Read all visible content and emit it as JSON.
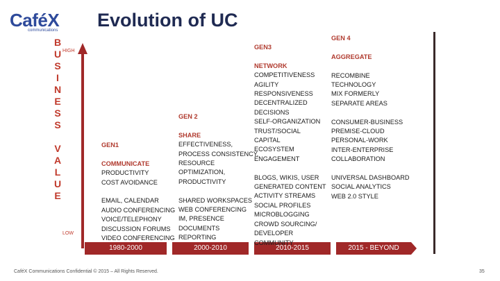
{
  "logo": {
    "text": "Café",
    "x": "X",
    "sub": "communications"
  },
  "title": "Evolution of UC",
  "yaxis": {
    "letters": [
      "B",
      "U",
      "S",
      "I",
      "N",
      "E",
      "S",
      "S",
      "",
      "V",
      "A",
      "L",
      "U",
      "E"
    ],
    "high": "HIGH",
    "low": "LOW"
  },
  "timeline": [
    "1980-2000",
    "2000-2010",
    "2010-2015",
    "2015 - BEYOND"
  ],
  "columns": [
    {
      "gen": "GEN1",
      "head": "COMMUNICATE",
      "lines": [
        "PRODUCTIVITY",
        "COST AVOIDANCE"
      ],
      "lines2": [
        "EMAIL, CALENDAR",
        "AUDIO CONFERENCING",
        "VOICE/TELEPHONY",
        "DISCUSSION FORUMS",
        "VIDEO CONFERENCING"
      ]
    },
    {
      "gen": "GEN 2",
      "head": "SHARE",
      "lines": [
        "EFFECTIVENESS,",
        "PROCESS CONSISTENCY,",
        "RESOURCE",
        "OPTIMIZATION,",
        "PRODUCTIVITY"
      ],
      "lines2": [
        "SHARED WORKSPACES",
        "WEB CONFERENCING",
        "IM, PRESENCE",
        "DOCUMENTS",
        "REPORTING"
      ]
    },
    {
      "gen": "GEN3",
      "head": "NETWORK",
      "lines": [
        "COMPETITIVENESS",
        "AGILITY",
        "RESPONSIVENESS",
        "DECENTRALIZED",
        "DECISIONS",
        "SELF-ORGANIZATION",
        "TRUST/SOCIAL",
        "CAPITAL",
        "ECOSYSTEM",
        "ENGAGEMENT"
      ],
      "lines2": [
        "BLOGS, WIKIS, USER",
        "GENERATED CONTENT",
        "ACTIVITY STREAMS",
        "SOCIAL PROFILES",
        "MICROBLOGGING",
        "CROWD SOURCING/",
        "DEVELOPER",
        "COMMUNITY"
      ]
    },
    {
      "gen": "GEN 4",
      "head": "AGGREGATE",
      "lines": [
        "RECOMBINE",
        "TECHNOLOGY",
        "MIX FORMERLY",
        "SEPARATE AREAS"
      ],
      "lines_b": [
        "CONSUMER-BUSINESS",
        "PREMISE-CLOUD",
        "PERSONAL-WORK",
        "INTER-ENTERPRISE",
        "COLLABORATION"
      ],
      "lines2": [
        "UNIVERSAL DASHBOARD",
        "SOCIAL ANALYTICS",
        "WEB 2.0 STYLE"
      ]
    }
  ],
  "footer": "CaféX Communications Confidential © 2015 – All Rights Reserved.",
  "page_number": "35"
}
